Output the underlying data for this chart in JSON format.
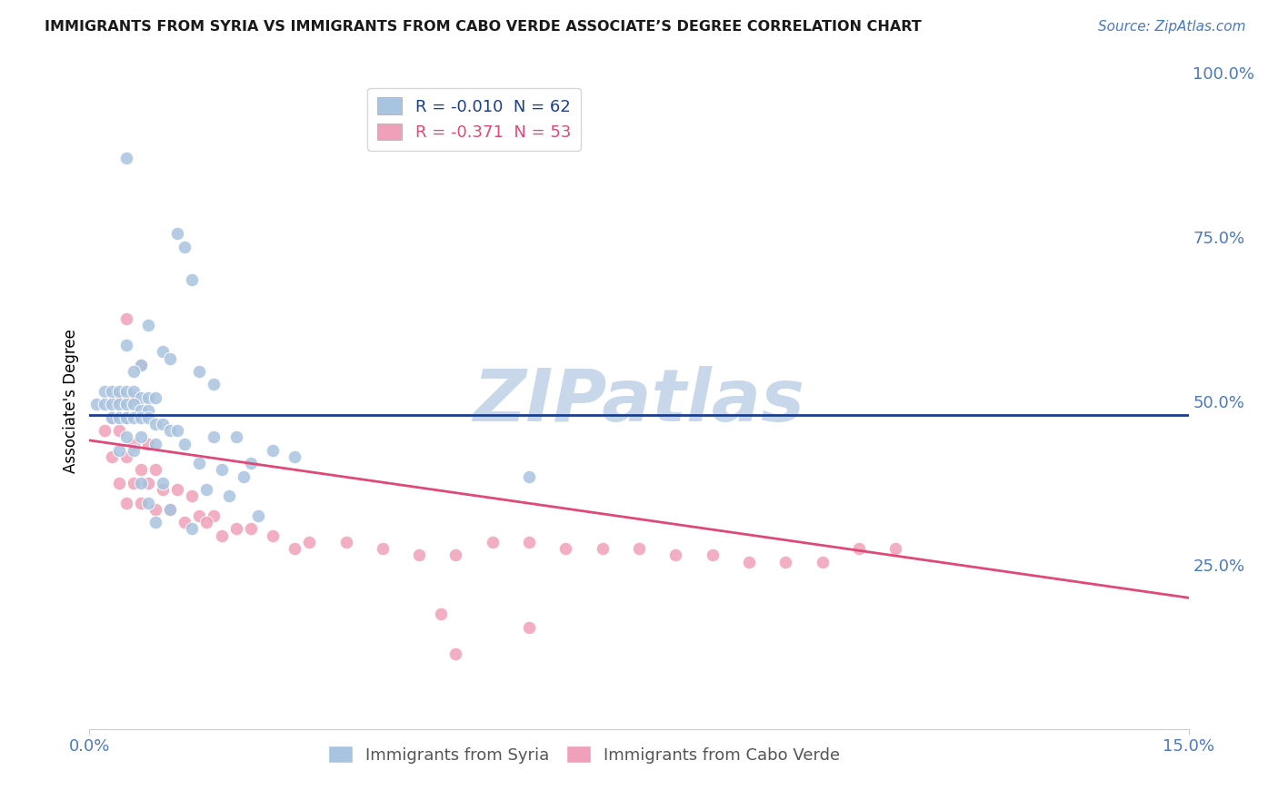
{
  "title": "IMMIGRANTS FROM SYRIA VS IMMIGRANTS FROM CABO VERDE ASSOCIATE’S DEGREE CORRELATION CHART",
  "source": "Source: ZipAtlas.com",
  "ylabel": "Associate's Degree",
  "xlim": [
    0.0,
    0.15
  ],
  "ylim": [
    0.0,
    1.0
  ],
  "ytick_positions": [
    0.25,
    0.5,
    0.75,
    1.0
  ],
  "ytick_labels": [
    "25.0%",
    "50.0%",
    "75.0%",
    "100.0%"
  ],
  "syria_color": "#a8c4e0",
  "cabo_verde_color": "#f0a0b8",
  "syria_line_color": "#1a3f8f",
  "cabo_verde_line_color": "#e04878",
  "background_color": "#ffffff",
  "grid_color": "#cccccc",
  "watermark": "ZIPatlas",
  "watermark_color": "#c8d8ea",
  "axis_color": "#4a7abf",
  "syria_R": -0.01,
  "cabo_verde_R": -0.371,
  "syria_N": 62,
  "cabo_verde_N": 53,
  "syria_scatter": [
    [
      0.005,
      0.87
    ],
    [
      0.012,
      0.755
    ],
    [
      0.013,
      0.735
    ],
    [
      0.014,
      0.685
    ],
    [
      0.008,
      0.615
    ],
    [
      0.005,
      0.585
    ],
    [
      0.01,
      0.575
    ],
    [
      0.011,
      0.565
    ],
    [
      0.007,
      0.555
    ],
    [
      0.006,
      0.545
    ],
    [
      0.015,
      0.545
    ],
    [
      0.017,
      0.525
    ],
    [
      0.002,
      0.515
    ],
    [
      0.003,
      0.515
    ],
    [
      0.004,
      0.515
    ],
    [
      0.005,
      0.515
    ],
    [
      0.006,
      0.515
    ],
    [
      0.007,
      0.505
    ],
    [
      0.008,
      0.505
    ],
    [
      0.009,
      0.505
    ],
    [
      0.001,
      0.495
    ],
    [
      0.002,
      0.495
    ],
    [
      0.003,
      0.495
    ],
    [
      0.004,
      0.495
    ],
    [
      0.005,
      0.495
    ],
    [
      0.006,
      0.495
    ],
    [
      0.007,
      0.485
    ],
    [
      0.008,
      0.485
    ],
    [
      0.003,
      0.475
    ],
    [
      0.004,
      0.475
    ],
    [
      0.005,
      0.475
    ],
    [
      0.006,
      0.475
    ],
    [
      0.007,
      0.475
    ],
    [
      0.008,
      0.475
    ],
    [
      0.009,
      0.465
    ],
    [
      0.01,
      0.465
    ],
    [
      0.011,
      0.455
    ],
    [
      0.012,
      0.455
    ],
    [
      0.005,
      0.445
    ],
    [
      0.007,
      0.445
    ],
    [
      0.017,
      0.445
    ],
    [
      0.02,
      0.445
    ],
    [
      0.009,
      0.435
    ],
    [
      0.013,
      0.435
    ],
    [
      0.004,
      0.425
    ],
    [
      0.006,
      0.425
    ],
    [
      0.025,
      0.425
    ],
    [
      0.028,
      0.415
    ],
    [
      0.015,
      0.405
    ],
    [
      0.022,
      0.405
    ],
    [
      0.018,
      0.395
    ],
    [
      0.021,
      0.385
    ],
    [
      0.007,
      0.375
    ],
    [
      0.01,
      0.375
    ],
    [
      0.016,
      0.365
    ],
    [
      0.019,
      0.355
    ],
    [
      0.008,
      0.345
    ],
    [
      0.011,
      0.335
    ],
    [
      0.06,
      0.385
    ],
    [
      0.023,
      0.325
    ],
    [
      0.009,
      0.315
    ],
    [
      0.014,
      0.305
    ]
  ],
  "cabo_verde_scatter": [
    [
      0.005,
      0.625
    ],
    [
      0.007,
      0.555
    ],
    [
      0.004,
      0.505
    ],
    [
      0.006,
      0.505
    ],
    [
      0.003,
      0.475
    ],
    [
      0.005,
      0.475
    ],
    [
      0.002,
      0.455
    ],
    [
      0.004,
      0.455
    ],
    [
      0.006,
      0.435
    ],
    [
      0.008,
      0.435
    ],
    [
      0.003,
      0.415
    ],
    [
      0.005,
      0.415
    ],
    [
      0.007,
      0.395
    ],
    [
      0.009,
      0.395
    ],
    [
      0.004,
      0.375
    ],
    [
      0.006,
      0.375
    ],
    [
      0.008,
      0.375
    ],
    [
      0.01,
      0.365
    ],
    [
      0.012,
      0.365
    ],
    [
      0.014,
      0.355
    ],
    [
      0.005,
      0.345
    ],
    [
      0.007,
      0.345
    ],
    [
      0.009,
      0.335
    ],
    [
      0.011,
      0.335
    ],
    [
      0.015,
      0.325
    ],
    [
      0.017,
      0.325
    ],
    [
      0.013,
      0.315
    ],
    [
      0.016,
      0.315
    ],
    [
      0.02,
      0.305
    ],
    [
      0.022,
      0.305
    ],
    [
      0.018,
      0.295
    ],
    [
      0.025,
      0.295
    ],
    [
      0.03,
      0.285
    ],
    [
      0.035,
      0.285
    ],
    [
      0.028,
      0.275
    ],
    [
      0.04,
      0.275
    ],
    [
      0.045,
      0.265
    ],
    [
      0.05,
      0.265
    ],
    [
      0.055,
      0.285
    ],
    [
      0.06,
      0.285
    ],
    [
      0.065,
      0.275
    ],
    [
      0.07,
      0.275
    ],
    [
      0.075,
      0.275
    ],
    [
      0.08,
      0.265
    ],
    [
      0.085,
      0.265
    ],
    [
      0.09,
      0.255
    ],
    [
      0.095,
      0.255
    ],
    [
      0.1,
      0.255
    ],
    [
      0.105,
      0.275
    ],
    [
      0.11,
      0.275
    ],
    [
      0.048,
      0.175
    ],
    [
      0.06,
      0.155
    ],
    [
      0.05,
      0.115
    ]
  ]
}
